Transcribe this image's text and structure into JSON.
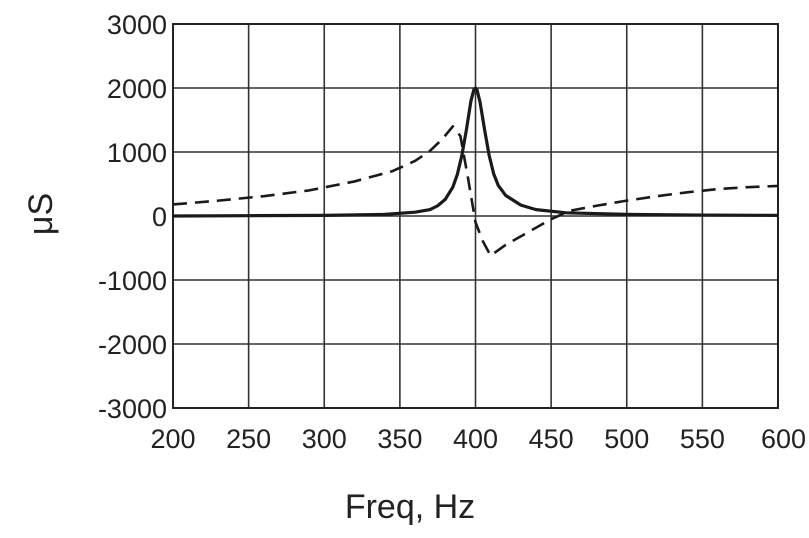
{
  "chart_data": {
    "type": "line",
    "title": "",
    "xlabel": "Freq, Hz",
    "ylabel": "μS",
    "xlim": [
      200,
      600
    ],
    "ylim": [
      -3000,
      3000
    ],
    "x_ticks": [
      200,
      250,
      300,
      350,
      400,
      450,
      500,
      550,
      600
    ],
    "y_ticks": [
      3000,
      2000,
      1000,
      0,
      -1000,
      -2000,
      -3000
    ],
    "x_tick_labels": [
      "200",
      "250",
      "300",
      "350",
      "400",
      "450",
      "500",
      "550",
      "600"
    ],
    "y_tick_labels": [
      "3000",
      "2000",
      "1000",
      "0",
      "-1000",
      "-2000",
      "-3000"
    ],
    "grid": true,
    "legend": "none",
    "series": [
      {
        "style": "solid",
        "color": "#1a1a1a",
        "x": [
          200,
          250,
          300,
          340,
          360,
          370,
          375,
          380,
          385,
          388,
          391,
          394,
          397,
          399,
          400,
          401,
          403,
          406,
          409,
          412,
          415,
          420,
          430,
          440,
          460,
          500,
          550,
          600
        ],
        "y": [
          0,
          5,
          10,
          25,
          60,
          100,
          160,
          260,
          450,
          650,
          950,
          1350,
          1800,
          1980,
          2000,
          1970,
          1780,
          1350,
          950,
          660,
          480,
          320,
          170,
          100,
          50,
          25,
          15,
          10
        ]
      },
      {
        "style": "dashed",
        "color": "#1a1a1a",
        "x": [
          200,
          230,
          260,
          290,
          320,
          345,
          360,
          370,
          378,
          385,
          390,
          395,
          400,
          405,
          410,
          420,
          435,
          450,
          462,
          480,
          500,
          520,
          540,
          560,
          580,
          600
        ],
        "y": [
          180,
          240,
          310,
          400,
          540,
          700,
          860,
          1020,
          1200,
          1400,
          1250,
          600,
          -100,
          -400,
          -620,
          -450,
          -250,
          -50,
          80,
          160,
          240,
          310,
          370,
          420,
          450,
          470
        ]
      }
    ]
  }
}
